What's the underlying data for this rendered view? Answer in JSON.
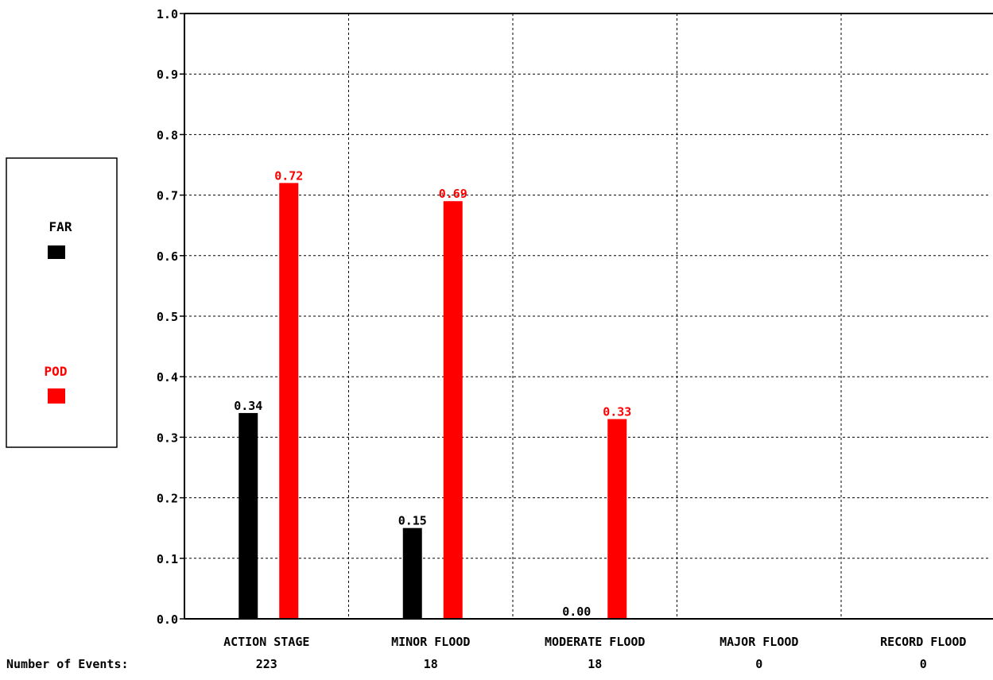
{
  "chart_data": {
    "type": "bar",
    "categories": [
      "ACTION STAGE",
      "MINOR FLOOD",
      "MODERATE FLOOD",
      "MAJOR FLOOD",
      "RECORD FLOOD"
    ],
    "series": [
      {
        "name": "FAR",
        "color": "#000000",
        "values": [
          0.34,
          0.15,
          0.0,
          null,
          null
        ],
        "labels": [
          "0.34",
          "0.15",
          "0.00",
          null,
          null
        ]
      },
      {
        "name": "POD",
        "color": "#ff0000",
        "values": [
          0.72,
          0.69,
          0.33,
          null,
          null
        ],
        "labels": [
          "0.72",
          "0.69",
          "0.33",
          null,
          null
        ]
      }
    ],
    "ylim": [
      0.0,
      1.0
    ],
    "yticks": [
      "0.0",
      "0.1",
      "0.2",
      "0.3",
      "0.4",
      "0.5",
      "0.6",
      "0.7",
      "0.8",
      "0.9",
      "1.0"
    ],
    "grid": true,
    "legend_position": "left",
    "events_label": "Number of Events:",
    "events": [
      "223",
      "18",
      "18",
      "0",
      "0"
    ]
  }
}
